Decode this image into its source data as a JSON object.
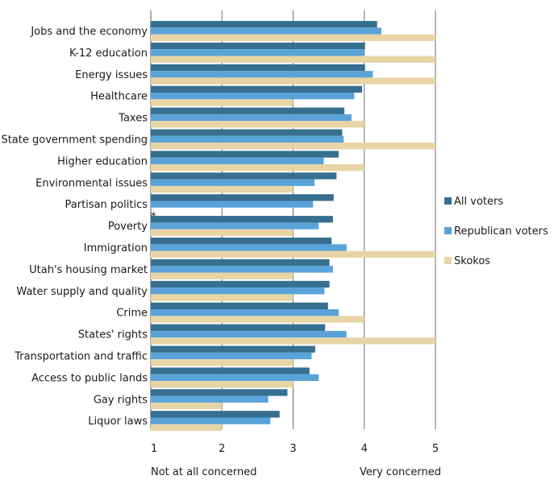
{
  "chart_data": {
    "type": "bar",
    "orientation": "horizontal",
    "categories": [
      "Jobs and the economy",
      "K-12 education",
      "Energy issues",
      "Healthcare",
      "Taxes",
      "State government spending",
      "Higher education",
      "Environmental issues",
      "Partisan politics",
      "Poverty",
      "Immigration",
      "Utah's housing market",
      "Water supply and quality",
      "Crime",
      "States' rights",
      "Transportation and traffic",
      "Access to public lands",
      "Gay rights",
      "Liquor laws"
    ],
    "series": [
      {
        "name": "All voters",
        "color": "#366f8f",
        "values": [
          4.18,
          4.01,
          4.01,
          3.97,
          3.72,
          3.69,
          3.64,
          3.61,
          3.57,
          3.56,
          3.54,
          3.51,
          3.51,
          3.49,
          3.45,
          3.31,
          3.23,
          2.92,
          2.81
        ]
      },
      {
        "name": "Republican voters",
        "color": "#5aa3d9",
        "values": [
          4.24,
          4.0,
          4.12,
          3.86,
          3.82,
          3.71,
          3.43,
          3.3,
          3.28,
          3.36,
          3.75,
          3.56,
          3.44,
          3.64,
          3.75,
          3.26,
          3.36,
          2.65,
          2.68
        ]
      },
      {
        "name": "Skokos",
        "color": "#e8d5a6",
        "values": [
          5,
          5,
          5,
          3,
          4,
          5,
          4,
          3,
          null,
          3,
          5,
          3,
          3,
          4,
          5,
          3,
          3,
          2,
          2
        ]
      }
    ],
    "missing_marker": "*",
    "missing_marker_category": "Partisan politics",
    "xlim": [
      1,
      5
    ],
    "xticks": [
      "1",
      "2",
      "3",
      "4",
      "5"
    ],
    "xaxis_end_labels": {
      "low": "Not at all concerned",
      "high": "Very concerned"
    },
    "grid": "vertical lines at each tick",
    "legend_position": "right"
  }
}
